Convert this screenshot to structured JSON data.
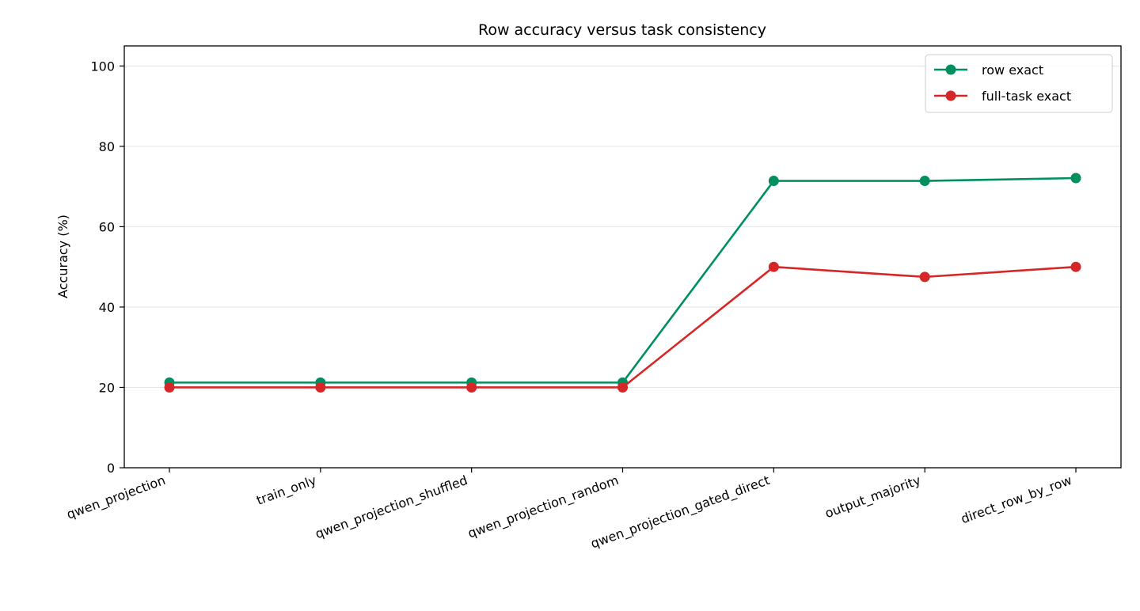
{
  "chart_data": {
    "type": "line",
    "title": "Row accuracy versus task consistency",
    "xlabel": "",
    "ylabel": "Accuracy (%)",
    "categories": [
      "qwen_projection",
      "train_only",
      "qwen_projection_shuffled",
      "qwen_projection_random",
      "qwen_projection_gated_direct",
      "output_majority",
      "direct_row_by_row"
    ],
    "ylim": [
      0,
      105
    ],
    "yticks": [
      0,
      20,
      40,
      60,
      80,
      100
    ],
    "grid": "horizontal",
    "legend_position": "top-right",
    "series": [
      {
        "name": "row exact",
        "color": "#008f60",
        "values": [
          21.2,
          21.2,
          21.2,
          21.2,
          71.4,
          71.4,
          72.1
        ]
      },
      {
        "name": "full-task exact",
        "color": "#d62728",
        "values": [
          20.0,
          20.0,
          20.0,
          20.0,
          50.0,
          47.5,
          50.0
        ]
      }
    ]
  }
}
